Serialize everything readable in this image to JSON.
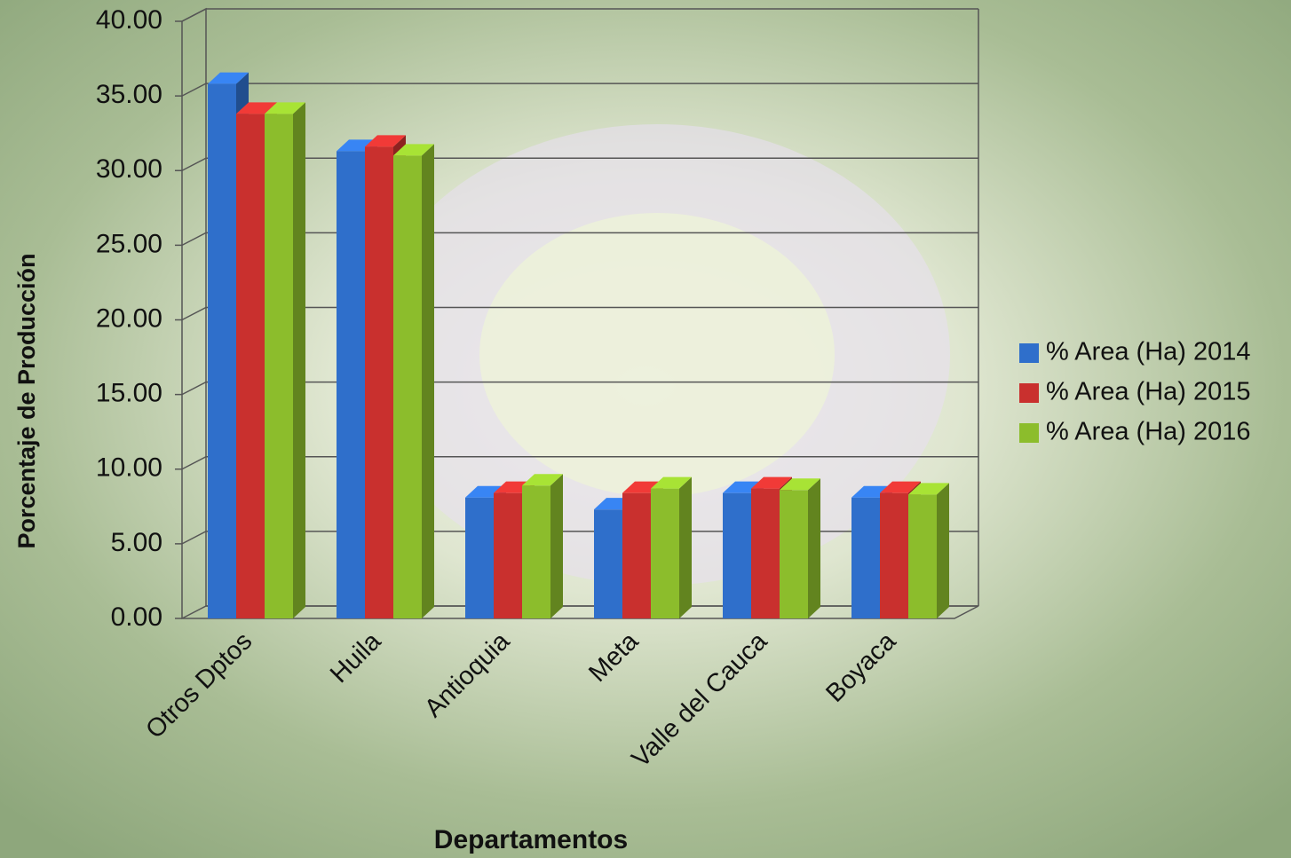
{
  "chart_data": {
    "type": "bar3d",
    "x_label": "Departamentos",
    "y_label": "Porcentaje de Producción",
    "categories": [
      "Otros Dptos",
      "Huila",
      "Antioquia",
      "Meta",
      "Valle del Cauca",
      "Boyaca"
    ],
    "series": [
      {
        "name": "% Area (Ha) 2014",
        "color": "#2f6fcb",
        "values": [
          35.8,
          31.3,
          8.1,
          7.3,
          8.4,
          8.1
        ]
      },
      {
        "name": "% Area (Ha) 2015",
        "color": "#c9302e",
        "values": [
          33.8,
          31.6,
          8.4,
          8.4,
          8.7,
          8.4
        ]
      },
      {
        "name": "% Area (Ha) 2016",
        "color": "#8cbd2c",
        "values": [
          33.8,
          31.0,
          8.9,
          8.7,
          8.6,
          8.3
        ]
      }
    ],
    "ylim": [
      0,
      40
    ],
    "yticks": [
      {
        "value": 0,
        "label": "0.00"
      },
      {
        "value": 5,
        "label": "5.00"
      },
      {
        "value": 10,
        "label": "10.00"
      },
      {
        "value": 15,
        "label": "15.00"
      },
      {
        "value": 20,
        "label": "20.00"
      },
      {
        "value": 25,
        "label": "25.00"
      },
      {
        "value": 30,
        "label": "30.00"
      },
      {
        "value": 35,
        "label": "35.00"
      },
      {
        "value": 40,
        "label": "40.00"
      }
    ],
    "grid": true,
    "legend": "right"
  }
}
